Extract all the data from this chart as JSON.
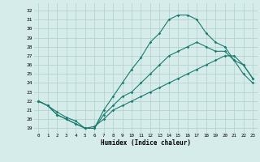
{
  "xlabel": "Humidex (Indice chaleur)",
  "background_color": "#d6ecea",
  "grid_color": "#b0cfcb",
  "line_color": "#1a7a6e",
  "x_ticks": [
    0,
    1,
    2,
    3,
    4,
    5,
    6,
    7,
    8,
    9,
    10,
    11,
    12,
    13,
    14,
    15,
    16,
    17,
    18,
    19,
    20,
    21,
    22,
    23
  ],
  "y_ticks": [
    19,
    20,
    21,
    22,
    23,
    24,
    25,
    26,
    27,
    28,
    29,
    30,
    31,
    32
  ],
  "xlim": [
    -0.5,
    23.5
  ],
  "ylim": [
    18.5,
    32.8
  ],
  "line1_x": [
    0,
    1,
    2,
    3,
    4,
    5,
    6,
    7,
    8,
    9,
    10,
    11,
    12,
    13,
    14,
    15,
    16,
    17,
    18,
    19,
    20,
    21,
    22,
    23
  ],
  "line1_y": [
    22.0,
    21.5,
    20.8,
    20.2,
    19.8,
    19.0,
    19.0,
    21.0,
    22.5,
    24.0,
    25.5,
    26.8,
    28.5,
    29.5,
    31.0,
    31.5,
    31.5,
    31.0,
    29.5,
    28.5,
    28.0,
    26.5,
    25.0,
    24.0
  ],
  "line2_x": [
    0,
    1,
    2,
    3,
    4,
    5,
    6,
    7,
    8,
    9,
    10,
    11,
    12,
    13,
    14,
    15,
    16,
    17,
    18,
    19,
    20,
    21,
    22,
    23
  ],
  "line2_y": [
    22.0,
    21.5,
    20.5,
    20.0,
    19.5,
    19.0,
    19.0,
    20.5,
    21.5,
    22.5,
    23.0,
    24.0,
    25.0,
    26.0,
    27.0,
    27.5,
    28.0,
    28.5,
    28.0,
    27.5,
    27.5,
    26.5,
    26.0,
    24.5
  ],
  "line3_x": [
    0,
    1,
    2,
    3,
    4,
    5,
    6,
    7,
    8,
    9,
    10,
    11,
    12,
    13,
    14,
    15,
    16,
    17,
    18,
    19,
    20,
    21,
    22,
    23
  ],
  "line3_y": [
    22.0,
    21.5,
    20.5,
    20.0,
    19.5,
    19.0,
    19.2,
    20.0,
    21.0,
    21.5,
    22.0,
    22.5,
    23.0,
    23.5,
    24.0,
    24.5,
    25.0,
    25.5,
    26.0,
    26.5,
    27.0,
    27.0,
    26.0,
    24.5
  ]
}
